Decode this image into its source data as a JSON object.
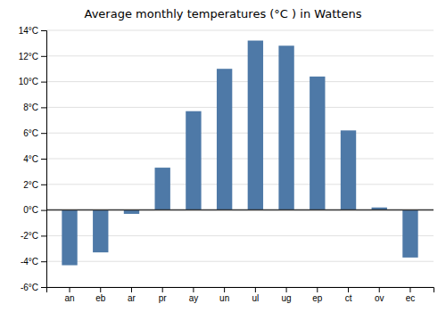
{
  "chart_data": {
    "type": "bar",
    "title": "Average monthly temperatures (°C ) in Wattens",
    "categories": [
      "an",
      "eb",
      "ar",
      "pr",
      "ay",
      "un",
      "ul",
      "ug",
      "ep",
      "ct",
      "ov",
      "ec"
    ],
    "values": [
      -4.3,
      -3.3,
      -0.3,
      3.3,
      7.7,
      11.0,
      13.2,
      12.8,
      10.4,
      6.2,
      0.2,
      -3.7
    ],
    "ylim": [
      -6,
      14
    ],
    "yticks": [
      {
        "value": -6,
        "label": "-6°C"
      },
      {
        "value": -4,
        "label": "-4°C"
      },
      {
        "value": -2,
        "label": "-2°C"
      },
      {
        "value": 0,
        "label": "0°C"
      },
      {
        "value": 2,
        "label": "2°C"
      },
      {
        "value": 4,
        "label": "4°C"
      },
      {
        "value": 6,
        "label": "6°C"
      },
      {
        "value": 8,
        "label": "8°C"
      },
      {
        "value": 10,
        "label": "10°C"
      },
      {
        "value": 12,
        "label": "12°C"
      },
      {
        "value": 14,
        "label": "14°C"
      }
    ],
    "grid": true
  }
}
